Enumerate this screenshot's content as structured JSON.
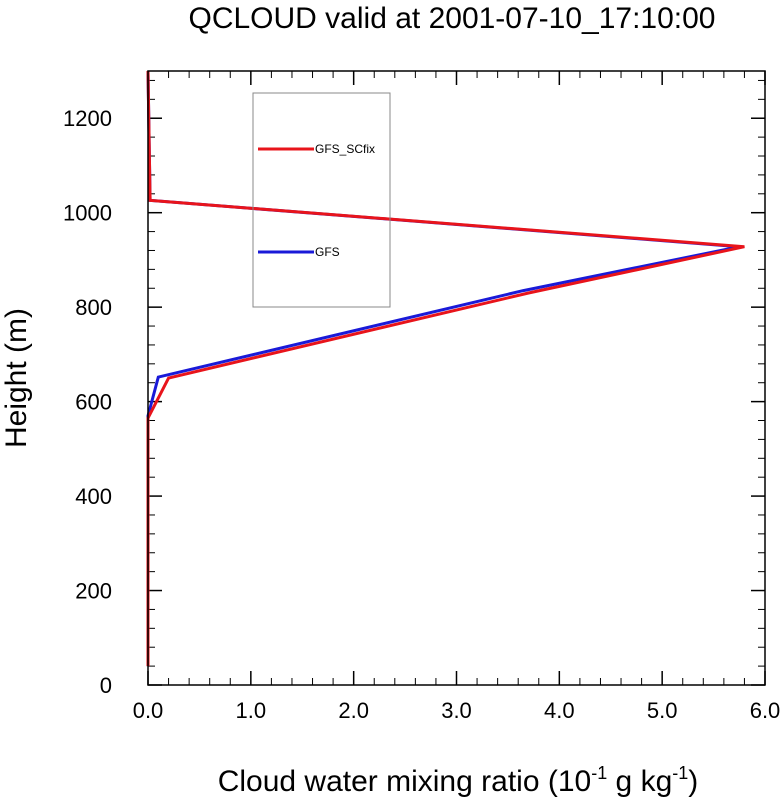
{
  "chart_data": {
    "type": "line",
    "title": "QCLOUD valid at 2001-07-10_17:10:00",
    "xlabel_main": "Cloud water mixing ratio (10",
    "xlabel_exp1": "-1",
    "xlabel_mid": " g kg",
    "xlabel_exp2": "-1",
    "xlabel_end": ")",
    "ylabel": "Height (m)",
    "xlim": [
      0,
      6.0
    ],
    "ylim": [
      0,
      1300
    ],
    "x_ticks": [
      0,
      1,
      2,
      3,
      4,
      5,
      6
    ],
    "x_tick_labels": [
      "0.0",
      "1.0",
      "2.0",
      "3.0",
      "4.0",
      "5.0",
      "6.0"
    ],
    "y_ticks": [
      0,
      200,
      400,
      600,
      800,
      1000,
      1200
    ],
    "y_tick_labels": [
      "0",
      "200",
      "400",
      "600",
      "800",
      "1000",
      "1200"
    ],
    "grid": false,
    "legend_position": "upper-left inside",
    "series": [
      {
        "name": "GFS_SCfix",
        "color": "#e8141b",
        "points": [
          [
            0,
            40
          ],
          [
            0,
            565
          ],
          [
            0.2,
            650
          ],
          [
            3.7,
            830
          ],
          [
            5.8,
            928
          ],
          [
            0.02,
            1026
          ],
          [
            0,
            1300
          ]
        ]
      },
      {
        "name": "GFS",
        "color": "#1a1ad8",
        "points": [
          [
            0,
            40
          ],
          [
            0,
            570
          ],
          [
            0.1,
            652
          ],
          [
            3.65,
            835
          ],
          [
            5.75,
            928
          ],
          [
            0.02,
            1026
          ],
          [
            0,
            1300
          ]
        ]
      }
    ]
  }
}
